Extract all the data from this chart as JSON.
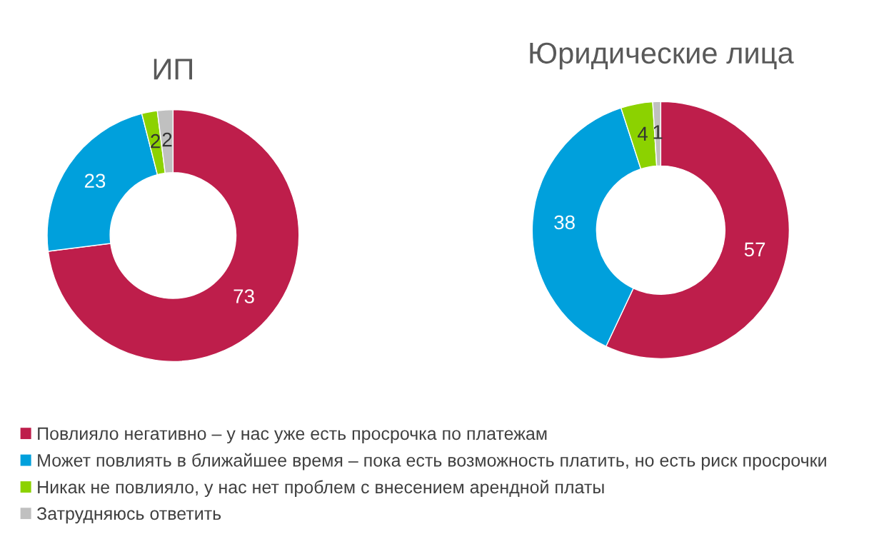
{
  "chart_data": [
    {
      "type": "donut",
      "title": "ИП",
      "categories": [
        "Повлияло негативно – у нас уже есть просрочка по платежам",
        "Может повлиять в ближайшее время – пока есть возможность платить, но есть риск просрочки",
        "Никак не повлияло, у нас нет проблем с внесением арендной платы",
        "Затрудняюсь ответить"
      ],
      "values": [
        73,
        23,
        2,
        2
      ],
      "colors": [
        "#be1e4b",
        "#00a0dc",
        "#8cd200",
        "#c0c0c0"
      ],
      "data_labels": true,
      "legend": "bottom"
    },
    {
      "type": "donut",
      "title": "Юридические лица",
      "categories": [
        null,
        null,
        null,
        null
      ],
      "values": [
        57,
        38,
        4,
        1
      ],
      "colors": [
        "#be1e4b",
        "#00a0dc",
        "#8cd200",
        "#c0c0c0"
      ],
      "data_labels": true
    }
  ]
}
